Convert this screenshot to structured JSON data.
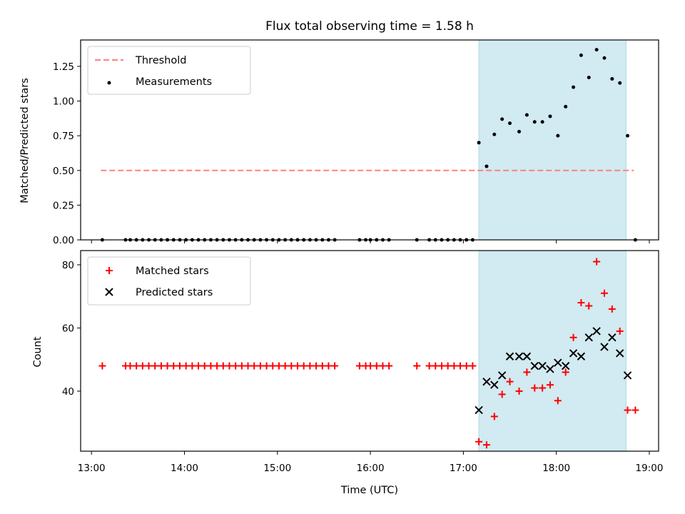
{
  "chart_data": {
    "title": "Flux total observing time = 1.58 h",
    "xlabel": "Time (UTC)",
    "xlim": [
      "12:53",
      "19:06"
    ],
    "xticks": [
      "13:00",
      "14:00",
      "15:00",
      "16:00",
      "17:00",
      "18:00",
      "19:00"
    ],
    "shaded_interval": {
      "start": "17:10",
      "end": "18:45",
      "color": "#add8e6"
    },
    "panels": [
      {
        "type": "scatter",
        "ylabel": "Matched/Predicted stars",
        "ylim": [
          0,
          1.44
        ],
        "yticks": [
          "0.00",
          "0.25",
          "0.50",
          "0.75",
          "1.00",
          "1.25"
        ],
        "legend": {
          "position": "top-left",
          "entries": [
            "Threshold",
            "Measurements"
          ]
        },
        "series": [
          {
            "name": "Threshold",
            "kind": "dashed-line",
            "color": "#ff8080",
            "points": [
              [
                "13:06",
                0.5
              ],
              [
                "18:50",
                0.5
              ]
            ]
          },
          {
            "name": "Measurements",
            "kind": "dots",
            "color": "#000000",
            "points": [
              [
                "13:07",
                0
              ],
              [
                "13:22",
                0
              ],
              [
                "13:25",
                0
              ],
              [
                "13:29",
                0
              ],
              [
                "13:33",
                0
              ],
              [
                "13:37",
                0
              ],
              [
                "13:41",
                0
              ],
              [
                "13:45",
                0
              ],
              [
                "13:49",
                0
              ],
              [
                "13:53",
                0
              ],
              [
                "13:57",
                0
              ],
              [
                "14:01",
                0
              ],
              [
                "14:05",
                0
              ],
              [
                "14:09",
                0
              ],
              [
                "14:13",
                0
              ],
              [
                "14:17",
                0
              ],
              [
                "14:21",
                0
              ],
              [
                "14:25",
                0
              ],
              [
                "14:29",
                0
              ],
              [
                "14:33",
                0
              ],
              [
                "14:37",
                0
              ],
              [
                "14:41",
                0
              ],
              [
                "14:45",
                0
              ],
              [
                "14:49",
                0
              ],
              [
                "14:53",
                0
              ],
              [
                "14:57",
                0
              ],
              [
                "15:01",
                0
              ],
              [
                "15:05",
                0
              ],
              [
                "15:09",
                0
              ],
              [
                "15:13",
                0
              ],
              [
                "15:17",
                0
              ],
              [
                "15:21",
                0
              ],
              [
                "15:25",
                0
              ],
              [
                "15:29",
                0
              ],
              [
                "15:33",
                0
              ],
              [
                "15:37",
                0
              ],
              [
                "15:53",
                0
              ],
              [
                "15:57",
                0
              ],
              [
                "16:00",
                0
              ],
              [
                "16:04",
                0
              ],
              [
                "16:08",
                0
              ],
              [
                "16:12",
                0
              ],
              [
                "16:30",
                0
              ],
              [
                "16:38",
                0
              ],
              [
                "16:42",
                0
              ],
              [
                "16:46",
                0
              ],
              [
                "16:50",
                0
              ],
              [
                "16:54",
                0
              ],
              [
                "16:58",
                0
              ],
              [
                "17:02",
                0
              ],
              [
                "17:06",
                0
              ],
              [
                "17:10",
                0.7
              ],
              [
                "17:15",
                0.53
              ],
              [
                "17:20",
                0.76
              ],
              [
                "17:25",
                0.87
              ],
              [
                "17:30",
                0.84
              ],
              [
                "17:36",
                0.78
              ],
              [
                "17:41",
                0.9
              ],
              [
                "17:46",
                0.85
              ],
              [
                "17:51",
                0.85
              ],
              [
                "17:56",
                0.89
              ],
              [
                "18:01",
                0.75
              ],
              [
                "18:06",
                0.96
              ],
              [
                "18:11",
                1.1
              ],
              [
                "18:16",
                1.33
              ],
              [
                "18:21",
                1.17
              ],
              [
                "18:26",
                1.37
              ],
              [
                "18:31",
                1.31
              ],
              [
                "18:36",
                1.16
              ],
              [
                "18:41",
                1.13
              ],
              [
                "18:46",
                0.75
              ],
              [
                "18:51",
                0
              ]
            ]
          }
        ]
      },
      {
        "type": "scatter",
        "ylabel": "Count",
        "ylim": [
          21,
          84.5
        ],
        "yticks": [
          "40",
          "60",
          "80"
        ],
        "legend": {
          "position": "top-left",
          "entries": [
            "Matched stars",
            "Predicted stars"
          ]
        },
        "series": [
          {
            "name": "Matched stars",
            "kind": "plus",
            "color": "#ff0000",
            "points": [
              [
                "13:07",
                48
              ],
              [
                "13:22",
                48
              ],
              [
                "13:25",
                48
              ],
              [
                "13:29",
                48
              ],
              [
                "13:33",
                48
              ],
              [
                "13:37",
                48
              ],
              [
                "13:41",
                48
              ],
              [
                "13:45",
                48
              ],
              [
                "13:49",
                48
              ],
              [
                "13:53",
                48
              ],
              [
                "13:57",
                48
              ],
              [
                "14:01",
                48
              ],
              [
                "14:05",
                48
              ],
              [
                "14:09",
                48
              ],
              [
                "14:13",
                48
              ],
              [
                "14:17",
                48
              ],
              [
                "14:21",
                48
              ],
              [
                "14:25",
                48
              ],
              [
                "14:29",
                48
              ],
              [
                "14:33",
                48
              ],
              [
                "14:37",
                48
              ],
              [
                "14:41",
                48
              ],
              [
                "14:45",
                48
              ],
              [
                "14:49",
                48
              ],
              [
                "14:53",
                48
              ],
              [
                "14:57",
                48
              ],
              [
                "15:01",
                48
              ],
              [
                "15:05",
                48
              ],
              [
                "15:09",
                48
              ],
              [
                "15:13",
                48
              ],
              [
                "15:17",
                48
              ],
              [
                "15:21",
                48
              ],
              [
                "15:25",
                48
              ],
              [
                "15:29",
                48
              ],
              [
                "15:33",
                48
              ],
              [
                "15:37",
                48
              ],
              [
                "15:53",
                48
              ],
              [
                "15:57",
                48
              ],
              [
                "16:00",
                48
              ],
              [
                "16:04",
                48
              ],
              [
                "16:08",
                48
              ],
              [
                "16:12",
                48
              ],
              [
                "16:30",
                48
              ],
              [
                "16:38",
                48
              ],
              [
                "16:42",
                48
              ],
              [
                "16:46",
                48
              ],
              [
                "16:50",
                48
              ],
              [
                "16:54",
                48
              ],
              [
                "16:58",
                48
              ],
              [
                "17:02",
                48
              ],
              [
                "17:06",
                48
              ],
              [
                "17:10",
                24
              ],
              [
                "17:15",
                23
              ],
              [
                "17:20",
                32
              ],
              [
                "17:25",
                39
              ],
              [
                "17:30",
                43
              ],
              [
                "17:36",
                40
              ],
              [
                "17:41",
                46
              ],
              [
                "17:46",
                41
              ],
              [
                "17:51",
                41
              ],
              [
                "17:56",
                42
              ],
              [
                "18:01",
                37
              ],
              [
                "18:06",
                46
              ],
              [
                "18:11",
                57
              ],
              [
                "18:16",
                68
              ],
              [
                "18:21",
                67
              ],
              [
                "18:26",
                81
              ],
              [
                "18:31",
                71
              ],
              [
                "18:36",
                66
              ],
              [
                "18:41",
                59
              ],
              [
                "18:46",
                34
              ],
              [
                "18:51",
                34
              ]
            ]
          },
          {
            "name": "Predicted stars",
            "kind": "x",
            "color": "#000000",
            "points": [
              [
                "17:10",
                34
              ],
              [
                "17:15",
                43
              ],
              [
                "17:20",
                42
              ],
              [
                "17:25",
                45
              ],
              [
                "17:30",
                51
              ],
              [
                "17:36",
                51
              ],
              [
                "17:41",
                51
              ],
              [
                "17:46",
                48
              ],
              [
                "17:51",
                48
              ],
              [
                "17:56",
                47
              ],
              [
                "18:01",
                49
              ],
              [
                "18:06",
                48
              ],
              [
                "18:11",
                52
              ],
              [
                "18:16",
                51
              ],
              [
                "18:21",
                57
              ],
              [
                "18:26",
                59
              ],
              [
                "18:31",
                54
              ],
              [
                "18:36",
                57
              ],
              [
                "18:41",
                52
              ],
              [
                "18:46",
                45
              ]
            ]
          }
        ]
      }
    ]
  }
}
